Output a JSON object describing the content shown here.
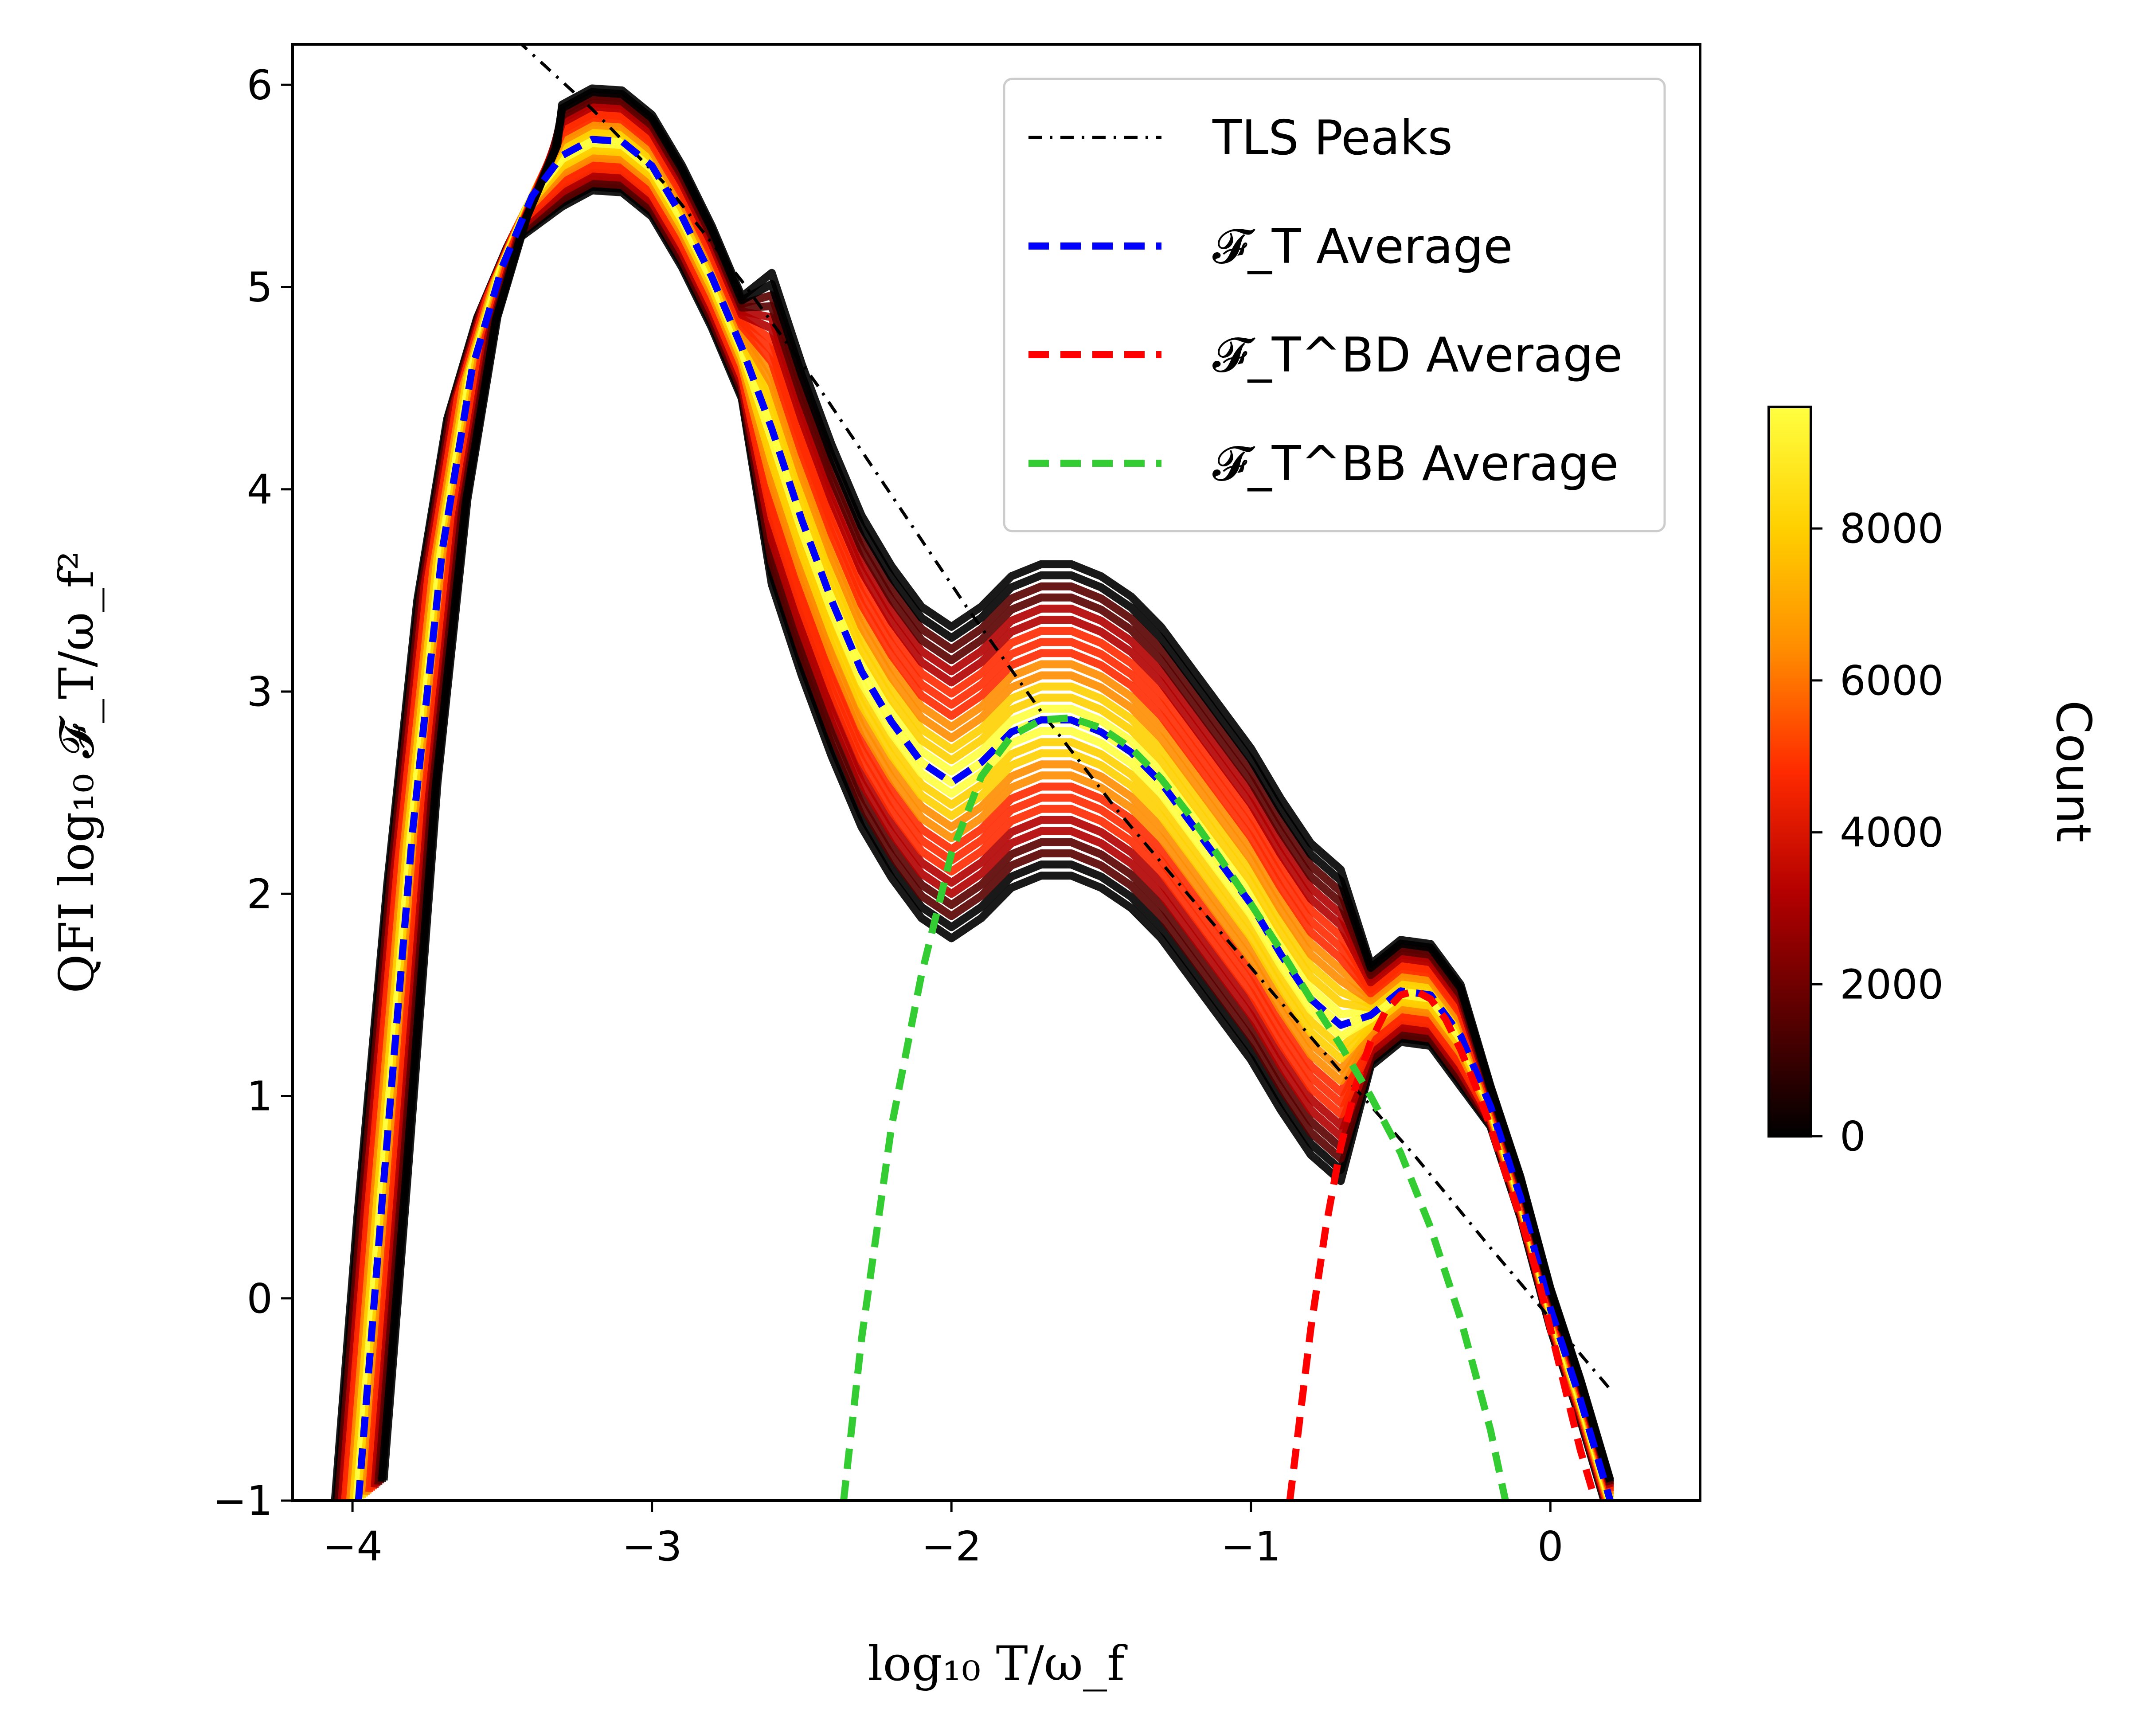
{
  "chart_data": {
    "type": "line",
    "xlabel": "log₁₀ T/ω_f",
    "ylabel": "QFI log₁₀ 𝓕_T/ω_f²",
    "xlim": [
      -4.2,
      0.5
    ],
    "ylim": [
      -1,
      6.2
    ],
    "x_ticks": [
      -4,
      -3,
      -2,
      -1,
      0
    ],
    "y_ticks": [
      -1,
      0,
      1,
      2,
      3,
      4,
      5,
      6
    ],
    "x_tick_labels": [
      "−4",
      "−3",
      "−2",
      "−1",
      "0"
    ],
    "y_tick_labels": [
      "−1",
      "0",
      "1",
      "2",
      "3",
      "4",
      "5",
      "6"
    ],
    "colorbar": {
      "label": "Count",
      "range": [
        0,
        9600
      ],
      "ticks": [
        0,
        2000,
        4000,
        6000,
        8000
      ],
      "tick_labels": [
        "0",
        "2000",
        "4000",
        "6000",
        "8000"
      ],
      "colormap": [
        "#000000",
        "#5a0000",
        "#b30000",
        "#ff2a00",
        "#ff8c00",
        "#ffd000",
        "#ffff40"
      ]
    },
    "legend": {
      "position": "top-right",
      "entries": [
        {
          "name": "TLS Peaks",
          "color": "#000000",
          "style": "dashdot"
        },
        {
          "name": "𝓕_T Average",
          "color": "#0000ff",
          "style": "dashed"
        },
        {
          "name": "𝓕_T^BD Average",
          "color": "#ff0000",
          "style": "dashed"
        },
        {
          "name": "𝓕_T^BB Average",
          "color": "#33cc33",
          "style": "dashed"
        }
      ]
    },
    "series": [
      {
        "name": "TLS Peaks",
        "color": "#000000",
        "x": [
          -3.45,
          -3.2,
          -2.95,
          -2.7,
          -2.45,
          -2.2,
          -1.95,
          -1.7,
          -1.45,
          -1.2,
          -0.95,
          -0.7,
          -0.45,
          -0.2,
          0.0,
          0.2
        ],
        "y": [
          6.22,
          5.88,
          5.5,
          5.03,
          4.52,
          3.97,
          3.42,
          2.9,
          2.42,
          1.98,
          1.55,
          1.12,
          0.7,
          0.25,
          -0.1,
          -0.45
        ]
      },
      {
        "name": "𝓕_T Average",
        "color": "#0000ff",
        "x": [
          -3.98,
          -3.9,
          -3.8,
          -3.7,
          -3.6,
          -3.5,
          -3.4,
          -3.3,
          -3.2,
          -3.1,
          -3.0,
          -2.9,
          -2.8,
          -2.7,
          -2.6,
          -2.5,
          -2.4,
          -2.3,
          -2.2,
          -2.1,
          -2.0,
          -1.9,
          -1.8,
          -1.7,
          -1.6,
          -1.5,
          -1.4,
          -1.3,
          -1.2,
          -1.1,
          -1.0,
          -0.9,
          -0.8,
          -0.7,
          -0.6,
          -0.5,
          -0.4,
          -0.3,
          -0.2,
          -0.1,
          0.0,
          0.1,
          0.2
        ],
        "y": [
          -1.0,
          0.5,
          2.3,
          3.7,
          4.6,
          5.1,
          5.45,
          5.65,
          5.73,
          5.72,
          5.6,
          5.35,
          5.05,
          4.7,
          4.3,
          3.85,
          3.45,
          3.1,
          2.85,
          2.65,
          2.55,
          2.65,
          2.8,
          2.86,
          2.86,
          2.8,
          2.7,
          2.55,
          2.35,
          2.15,
          1.95,
          1.7,
          1.48,
          1.35,
          1.4,
          1.52,
          1.5,
          1.3,
          0.95,
          0.5,
          -0.05,
          -0.5,
          -1.0
        ]
      },
      {
        "name": "𝓕_T^BD Average",
        "color": "#ff0000",
        "x": [
          -0.87,
          -0.8,
          -0.75,
          -0.7,
          -0.65,
          -0.6,
          -0.55,
          -0.5,
          -0.45,
          -0.4,
          -0.35,
          -0.3,
          -0.25,
          -0.2,
          -0.15,
          -0.1,
          -0.05,
          0.0,
          0.05,
          0.1,
          0.15
        ],
        "y": [
          -1.0,
          -0.15,
          0.35,
          0.75,
          1.05,
          1.27,
          1.42,
          1.5,
          1.52,
          1.48,
          1.38,
          1.23,
          1.05,
          0.85,
          0.62,
          0.4,
          0.15,
          -0.15,
          -0.45,
          -0.75,
          -1.0
        ]
      },
      {
        "name": "𝓕_T^BB Average",
        "color": "#33cc33",
        "x": [
          -2.36,
          -2.3,
          -2.2,
          -2.1,
          -2.0,
          -1.9,
          -1.8,
          -1.7,
          -1.6,
          -1.5,
          -1.4,
          -1.3,
          -1.2,
          -1.1,
          -1.0,
          -0.9,
          -0.8,
          -0.7,
          -0.6,
          -0.5,
          -0.4,
          -0.3,
          -0.2,
          -0.15
        ],
        "y": [
          -1.0,
          -0.2,
          0.85,
          1.6,
          2.2,
          2.58,
          2.78,
          2.86,
          2.87,
          2.82,
          2.72,
          2.57,
          2.38,
          2.17,
          1.95,
          1.72,
          1.48,
          1.25,
          1.0,
          0.72,
          0.35,
          -0.1,
          -0.65,
          -1.0
        ]
      }
    ]
  }
}
